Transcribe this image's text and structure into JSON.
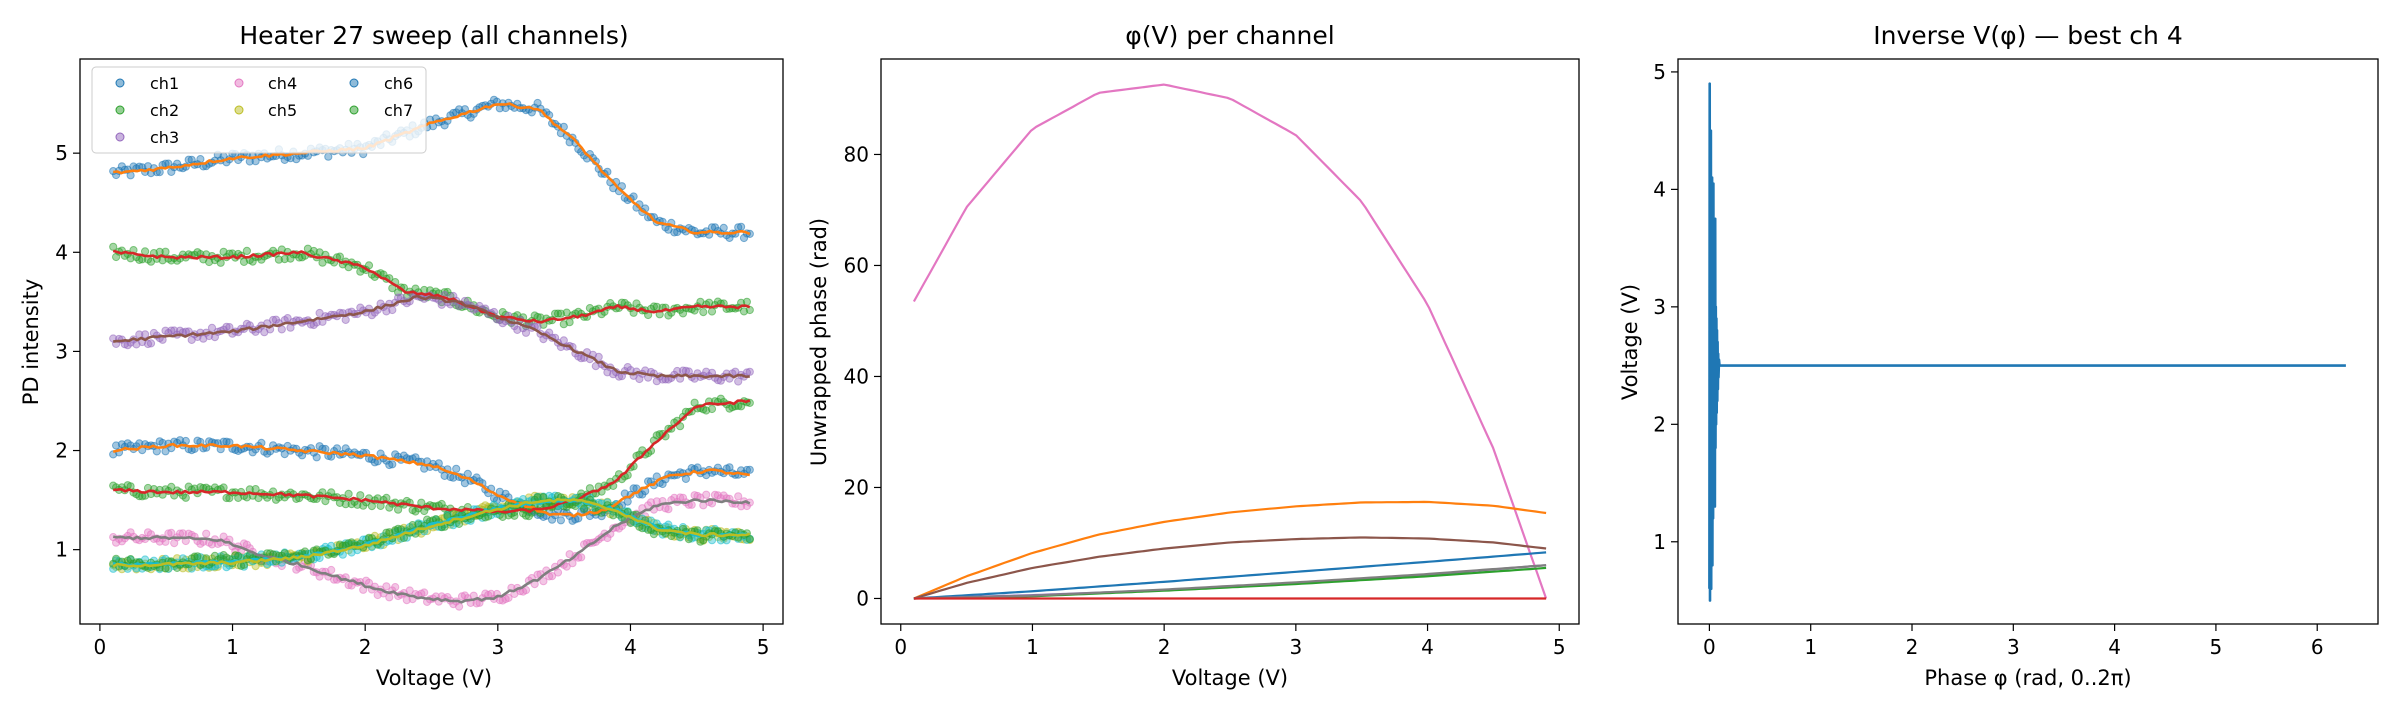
{
  "chart_data": [
    {
      "type": "scatter",
      "title": "Heater 27 sweep (all channels)",
      "xlabel": "Voltage (V)",
      "ylabel": "PD intensity",
      "xlim": [
        -0.15,
        5.15
      ],
      "ylim": [
        0.25,
        5.95
      ],
      "xticks": [
        "0",
        "1",
        "2",
        "3",
        "4",
        "5"
      ],
      "yticks": [
        "1",
        "2",
        "3",
        "4",
        "5"
      ],
      "legend": {
        "placement": "upper-left",
        "ncol": 3,
        "entries": [
          "ch1",
          "ch2",
          "ch3",
          "ch4",
          "ch5",
          "ch6",
          "ch7"
        ]
      },
      "x_range": [
        0.1,
        4.9
      ],
      "series": [
        {
          "name": "ch1",
          "color": "#1f77b4",
          "markers": "scatter",
          "x": [
            0.1,
            0.5,
            1.0,
            1.5,
            2.0,
            2.5,
            3.0,
            3.3,
            3.6,
            3.9,
            4.2,
            4.5,
            4.9
          ],
          "y": [
            4.8,
            4.85,
            4.95,
            5.0,
            5.05,
            5.3,
            5.5,
            5.45,
            5.1,
            4.65,
            4.3,
            4.2,
            4.2
          ]
        },
        {
          "name": "ch1",
          "color": "#1f77b4",
          "markers": "scatter",
          "x": [
            0.1,
            0.5,
            1.0,
            1.5,
            2.0,
            2.5,
            2.8,
            3.0,
            3.2,
            3.4,
            3.6,
            3.8,
            4.0,
            4.3,
            4.6,
            4.9
          ],
          "y": [
            2.0,
            2.05,
            2.05,
            2.0,
            1.95,
            1.85,
            1.7,
            1.55,
            1.45,
            1.35,
            1.35,
            1.4,
            1.55,
            1.75,
            1.8,
            1.75
          ]
        },
        {
          "name": "ch2",
          "color": "#2ca02c",
          "markers": "scatter",
          "x": [
            0.1,
            0.5,
            1.0,
            1.5,
            2.0,
            2.3,
            2.6,
            3.0,
            3.3,
            3.6,
            3.9,
            4.2,
            4.5,
            4.9
          ],
          "y": [
            4.0,
            3.95,
            3.95,
            4.0,
            3.85,
            3.6,
            3.55,
            3.35,
            3.3,
            3.35,
            3.45,
            3.4,
            3.45,
            3.45
          ]
        },
        {
          "name": "ch2",
          "color": "#2ca02c",
          "markers": "scatter",
          "x": [
            0.1,
            0.5,
            1.0,
            1.5,
            2.0,
            2.5,
            2.8,
            3.0,
            3.3,
            3.6,
            3.9,
            4.2,
            4.5,
            4.9
          ],
          "y": [
            1.6,
            1.58,
            1.58,
            1.55,
            1.5,
            1.42,
            1.4,
            1.38,
            1.4,
            1.5,
            1.7,
            2.1,
            2.45,
            2.5
          ]
        },
        {
          "name": "ch3",
          "color": "#9467bd",
          "markers": "scatter",
          "x": [
            0.1,
            0.5,
            1.0,
            1.5,
            2.0,
            2.4,
            2.7,
            3.0,
            3.3,
            3.6,
            3.9,
            4.2,
            4.5,
            4.9
          ],
          "y": [
            3.1,
            3.15,
            3.2,
            3.3,
            3.4,
            3.55,
            3.5,
            3.35,
            3.2,
            3.0,
            2.8,
            2.75,
            2.75,
            2.75
          ]
        },
        {
          "name": "ch4",
          "color": "#e377c2",
          "markers": "scatter",
          "x": [
            0.1,
            0.5,
            0.9,
            1.2,
            1.5,
            1.8,
            2.1,
            2.4,
            2.7,
            3.0,
            3.3,
            3.6,
            3.9,
            4.2,
            4.5,
            4.9
          ],
          "y": [
            1.12,
            1.12,
            1.1,
            0.95,
            0.85,
            0.72,
            0.6,
            0.52,
            0.48,
            0.52,
            0.7,
            0.95,
            1.25,
            1.45,
            1.5,
            1.48
          ]
        },
        {
          "name": "ch5",
          "color": "#bcbd22",
          "markers": "scatter",
          "x": [
            0.1,
            0.5,
            1.0,
            1.5,
            2.0,
            2.5,
            3.0,
            3.3,
            3.6,
            3.9,
            4.2,
            4.5,
            4.9
          ],
          "y": [
            0.85,
            0.85,
            0.88,
            0.92,
            1.05,
            1.25,
            1.42,
            1.5,
            1.5,
            1.4,
            1.2,
            1.15,
            1.15
          ]
        },
        {
          "name": "ch6",
          "color": "#17becf",
          "markers": "scatter",
          "x": [
            0.1,
            0.5,
            1.0,
            1.5,
            2.0,
            2.5,
            3.0,
            3.3,
            3.6,
            3.9,
            4.2,
            4.5,
            4.9
          ],
          "y": [
            0.85,
            0.86,
            0.88,
            0.92,
            1.05,
            1.25,
            1.42,
            1.48,
            1.5,
            1.4,
            1.22,
            1.15,
            1.15
          ]
        },
        {
          "name": "ch7",
          "color": "#2ca02c",
          "markers": "scatter",
          "x": [
            0.1,
            0.5,
            1.0,
            1.5,
            2.0,
            2.5,
            3.0,
            3.3,
            3.6,
            3.9,
            4.2,
            4.5,
            4.9
          ],
          "y": [
            0.86,
            0.87,
            0.89,
            0.93,
            1.06,
            1.26,
            1.4,
            1.47,
            1.49,
            1.38,
            1.2,
            1.14,
            1.14
          ]
        }
      ],
      "fit_lines": [
        {
          "color": "#ff7f0e",
          "x": [
            0.1,
            0.5,
            1.0,
            1.5,
            2.0,
            2.5,
            3.0,
            3.3,
            3.6,
            3.9,
            4.2,
            4.5,
            4.9
          ],
          "y": [
            4.8,
            4.85,
            4.95,
            5.0,
            5.05,
            5.3,
            5.5,
            5.45,
            5.1,
            4.65,
            4.3,
            4.2,
            4.2
          ]
        },
        {
          "color": "#ff7f0e",
          "x": [
            0.1,
            0.5,
            1.0,
            1.5,
            2.0,
            2.5,
            2.8,
            3.0,
            3.2,
            3.4,
            3.6,
            3.8,
            4.0,
            4.3,
            4.6,
            4.9
          ],
          "y": [
            2.0,
            2.05,
            2.05,
            2.0,
            1.95,
            1.85,
            1.7,
            1.55,
            1.45,
            1.35,
            1.35,
            1.4,
            1.55,
            1.75,
            1.8,
            1.75
          ]
        },
        {
          "color": "#d62728",
          "x": [
            0.1,
            0.5,
            1.0,
            1.5,
            2.0,
            2.3,
            2.6,
            3.0,
            3.3,
            3.6,
            3.9,
            4.2,
            4.5,
            4.9
          ],
          "y": [
            4.0,
            3.95,
            3.95,
            4.0,
            3.85,
            3.6,
            3.55,
            3.35,
            3.3,
            3.35,
            3.45,
            3.4,
            3.45,
            3.45
          ]
        },
        {
          "color": "#d62728",
          "x": [
            0.1,
            0.5,
            1.0,
            1.5,
            2.0,
            2.5,
            2.8,
            3.0,
            3.3,
            3.6,
            3.9,
            4.2,
            4.5,
            4.9
          ],
          "y": [
            1.6,
            1.58,
            1.58,
            1.55,
            1.5,
            1.42,
            1.4,
            1.38,
            1.4,
            1.5,
            1.7,
            2.1,
            2.45,
            2.5
          ]
        },
        {
          "color": "#8c564b",
          "x": [
            0.1,
            0.5,
            1.0,
            1.5,
            2.0,
            2.4,
            2.7,
            3.0,
            3.3,
            3.6,
            3.9,
            4.2,
            4.5,
            4.9
          ],
          "y": [
            3.1,
            3.15,
            3.2,
            3.3,
            3.4,
            3.55,
            3.5,
            3.35,
            3.2,
            3.0,
            2.8,
            2.75,
            2.75,
            2.75
          ]
        },
        {
          "color": "#7f7f7f",
          "x": [
            0.1,
            0.5,
            0.9,
            1.2,
            1.5,
            1.8,
            2.1,
            2.4,
            2.7,
            3.0,
            3.3,
            3.6,
            3.9,
            4.2,
            4.5,
            4.9
          ],
          "y": [
            1.12,
            1.12,
            1.1,
            0.95,
            0.85,
            0.72,
            0.6,
            0.52,
            0.48,
            0.52,
            0.7,
            0.95,
            1.25,
            1.45,
            1.5,
            1.48
          ]
        },
        {
          "color": "#17becf",
          "x": [
            0.1,
            0.5,
            1.0,
            1.5,
            2.0,
            2.5,
            3.0,
            3.3,
            3.6,
            3.9,
            4.2,
            4.5,
            4.9
          ],
          "y": [
            0.85,
            0.86,
            0.88,
            0.92,
            1.05,
            1.25,
            1.42,
            1.48,
            1.5,
            1.4,
            1.22,
            1.15,
            1.15
          ]
        },
        {
          "color": "#bcbd22",
          "x": [
            0.1,
            0.5,
            1.0,
            1.5,
            2.0,
            2.5,
            3.0,
            3.3,
            3.6,
            3.9,
            4.2,
            4.5,
            4.9
          ],
          "y": [
            0.84,
            0.85,
            0.87,
            0.92,
            1.04,
            1.24,
            1.41,
            1.49,
            1.5,
            1.39,
            1.21,
            1.15,
            1.15
          ]
        }
      ]
    },
    {
      "type": "line",
      "title": "φ(V) per channel",
      "xlabel": "Voltage (V)",
      "ylabel": "Unwrapped phase (rad)",
      "xlim": [
        -0.15,
        5.15
      ],
      "ylim": [
        -4.6,
        97.2
      ],
      "xticks": [
        "0",
        "1",
        "2",
        "3",
        "4",
        "5"
      ],
      "yticks": [
        "0",
        "20",
        "40",
        "60",
        "80"
      ],
      "series": [
        {
          "color": "#e377c2",
          "x": [
            0.1,
            0.5,
            1.0,
            1.5,
            2.0,
            2.5,
            3.0,
            3.5,
            4.0,
            4.5,
            4.9
          ],
          "y": [
            53.5,
            70.5,
            84.6,
            91.1,
            92.6,
            90.1,
            83.5,
            71.5,
            53.0,
            27.0,
            0.0
          ]
        },
        {
          "color": "#ff7f0e",
          "x": [
            0.1,
            0.5,
            1.0,
            1.5,
            2.0,
            2.5,
            3.0,
            3.5,
            4.0,
            4.5,
            4.9
          ],
          "y": [
            0,
            4.0,
            8.2,
            11.5,
            13.8,
            15.5,
            16.6,
            17.3,
            17.4,
            16.7,
            15.4
          ]
        },
        {
          "color": "#8c564b",
          "x": [
            0.1,
            0.5,
            1.0,
            1.5,
            2.0,
            2.5,
            3.0,
            3.5,
            4.0,
            4.5,
            4.9
          ],
          "y": [
            0,
            2.8,
            5.5,
            7.5,
            9.0,
            10.1,
            10.7,
            11.0,
            10.8,
            10.1,
            9.0
          ]
        },
        {
          "color": "#1f77b4",
          "x": [
            0.1,
            1.0,
            2.0,
            3.0,
            4.0,
            4.9
          ],
          "y": [
            0,
            1.3,
            3.0,
            4.8,
            6.6,
            8.3
          ]
        },
        {
          "color": "#9467bd",
          "x": [
            0.1,
            1.0,
            2.0,
            3.0,
            4.0,
            4.9
          ],
          "y": [
            0,
            0.6,
            1.5,
            2.8,
            4.3,
            6.0
          ]
        },
        {
          "color": "#2ca02c",
          "x": [
            0.1,
            1.0,
            2.0,
            3.0,
            4.0,
            4.9
          ],
          "y": [
            0,
            0.4,
            1.4,
            2.6,
            4.0,
            5.5
          ]
        },
        {
          "color": "#7f7f7f",
          "x": [
            0.1,
            1.0,
            2.0,
            3.0,
            4.0,
            4.9
          ],
          "y": [
            0,
            0.5,
            1.6,
            2.9,
            4.4,
            6.0
          ]
        },
        {
          "color": "#d62728",
          "x": [
            0.1,
            4.9
          ],
          "y": [
            0,
            0
          ]
        }
      ]
    },
    {
      "type": "line",
      "title": "Inverse V(φ) — best ch 4",
      "xlabel": "Phase φ (rad, 0..2π)",
      "ylabel": "Voltage (V)",
      "xlim": [
        -0.31,
        6.6
      ],
      "ylim": [
        0.3,
        5.11
      ],
      "xticks": [
        "0",
        "1",
        "2",
        "3",
        "4",
        "5",
        "6"
      ],
      "yticks": [
        "1",
        "2",
        "3",
        "4",
        "5"
      ],
      "series": [
        {
          "color": "#1f77b4",
          "x": [
            0.0,
            0.003,
            0.006,
            0.009,
            0.012,
            0.015,
            0.018,
            0.021,
            0.024,
            0.027,
            0.03,
            0.033,
            0.036,
            0.039,
            0.042,
            0.045,
            0.048,
            0.051,
            0.054,
            0.057,
            0.06,
            0.063,
            0.066,
            0.069,
            0.072,
            0.075,
            0.078,
            0.081,
            0.084,
            0.087,
            0.09,
            0.095,
            0.1,
            0.2,
            1.0,
            3.0,
            5.0,
            6.283
          ],
          "y": [
            0.6,
            4.9,
            0.5,
            3.9,
            0.7,
            4.5,
            0.6,
            3.3,
            1.0,
            4.1,
            0.8,
            2.9,
            1.2,
            4.05,
            1.4,
            3.6,
            1.5,
            3.2,
            1.3,
            3.75,
            1.8,
            3.0,
            2.0,
            2.9,
            2.1,
            2.8,
            2.2,
            2.7,
            2.3,
            2.6,
            2.4,
            2.55,
            2.5,
            2.5,
            2.5,
            2.5,
            2.5,
            2.5
          ]
        }
      ]
    }
  ]
}
